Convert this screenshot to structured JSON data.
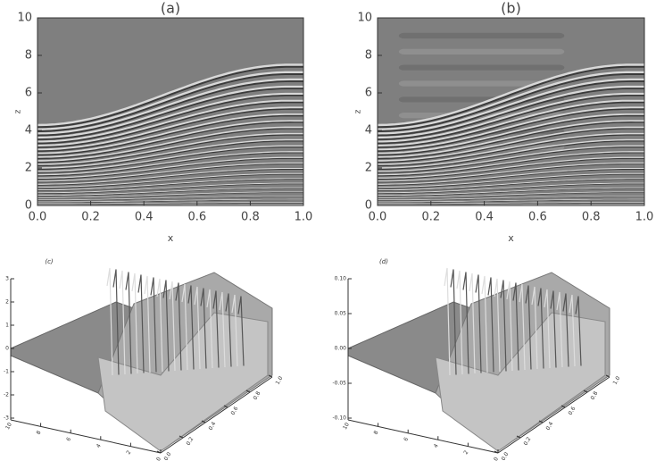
{
  "chart_data": [
    {
      "type": "field",
      "title": "(a)",
      "xlabel": "x",
      "ylabel": "z",
      "xlim": [
        0,
        1
      ],
      "xticks": [
        {
          "value": 0,
          "label": "0.0"
        },
        {
          "value": 0.2,
          "label": "0.2"
        },
        {
          "value": 0.4,
          "label": "0.4"
        },
        {
          "value": 0.6,
          "label": "0.6"
        },
        {
          "value": 0.8,
          "label": "0.8"
        },
        {
          "value": 1,
          "label": "1.0"
        }
      ],
      "ylim": [
        0,
        10
      ],
      "yticks": [
        0,
        2,
        4,
        6,
        8,
        10
      ]
    },
    {
      "type": "field",
      "title": "(b)",
      "xlabel": "x",
      "ylabel": "z",
      "xlim": [
        0,
        1
      ],
      "xticks": [
        {
          "value": 0,
          "label": "0.0"
        },
        {
          "value": 0.2,
          "label": "0.2"
        },
        {
          "value": 0.4,
          "label": "0.4"
        },
        {
          "value": 0.6,
          "label": "0.6"
        },
        {
          "value": 0.8,
          "label": "0.8"
        },
        {
          "value": 1,
          "label": "1.0"
        }
      ],
      "ylim": [
        0,
        10
      ],
      "yticks": [
        0,
        2,
        4,
        6,
        8,
        10
      ]
    },
    {
      "type": "surface",
      "title": "(c)",
      "zlim": [
        -3,
        3
      ],
      "zticks": [
        3,
        2,
        1,
        0,
        -1,
        -2,
        -3
      ],
      "yticks": [
        10,
        8,
        6,
        4,
        2,
        0
      ],
      "xticks": [
        {
          "value": 0,
          "label": "0.0"
        },
        {
          "value": 0.2,
          "label": "0.2"
        },
        {
          "value": 0.4,
          "label": "0.4"
        },
        {
          "value": 0.6,
          "label": "0.6"
        },
        {
          "value": 0.8,
          "label": "0.8"
        },
        {
          "value": 1,
          "label": "1.0"
        }
      ]
    },
    {
      "type": "surface",
      "title": "(d)",
      "zlim": [
        -0.1,
        0.1
      ],
      "zticks": [
        {
          "value": 0.1,
          "label": "0.10"
        },
        {
          "value": 0.05,
          "label": "0.05"
        },
        {
          "value": 0,
          "label": "0.00"
        },
        {
          "value": -0.05,
          "label": "-0.05"
        },
        {
          "value": -0.1,
          "label": "-0.10"
        }
      ],
      "yticks": [
        10,
        8,
        6,
        4,
        2,
        0
      ],
      "xticks": [
        {
          "value": 0,
          "label": "0.0"
        },
        {
          "value": 0.2,
          "label": "0.2"
        },
        {
          "value": 0.4,
          "label": "0.4"
        },
        {
          "value": 0.6,
          "label": "0.6"
        },
        {
          "value": 0.8,
          "label": "0.8"
        },
        {
          "value": 1,
          "label": "1.0"
        }
      ]
    }
  ]
}
